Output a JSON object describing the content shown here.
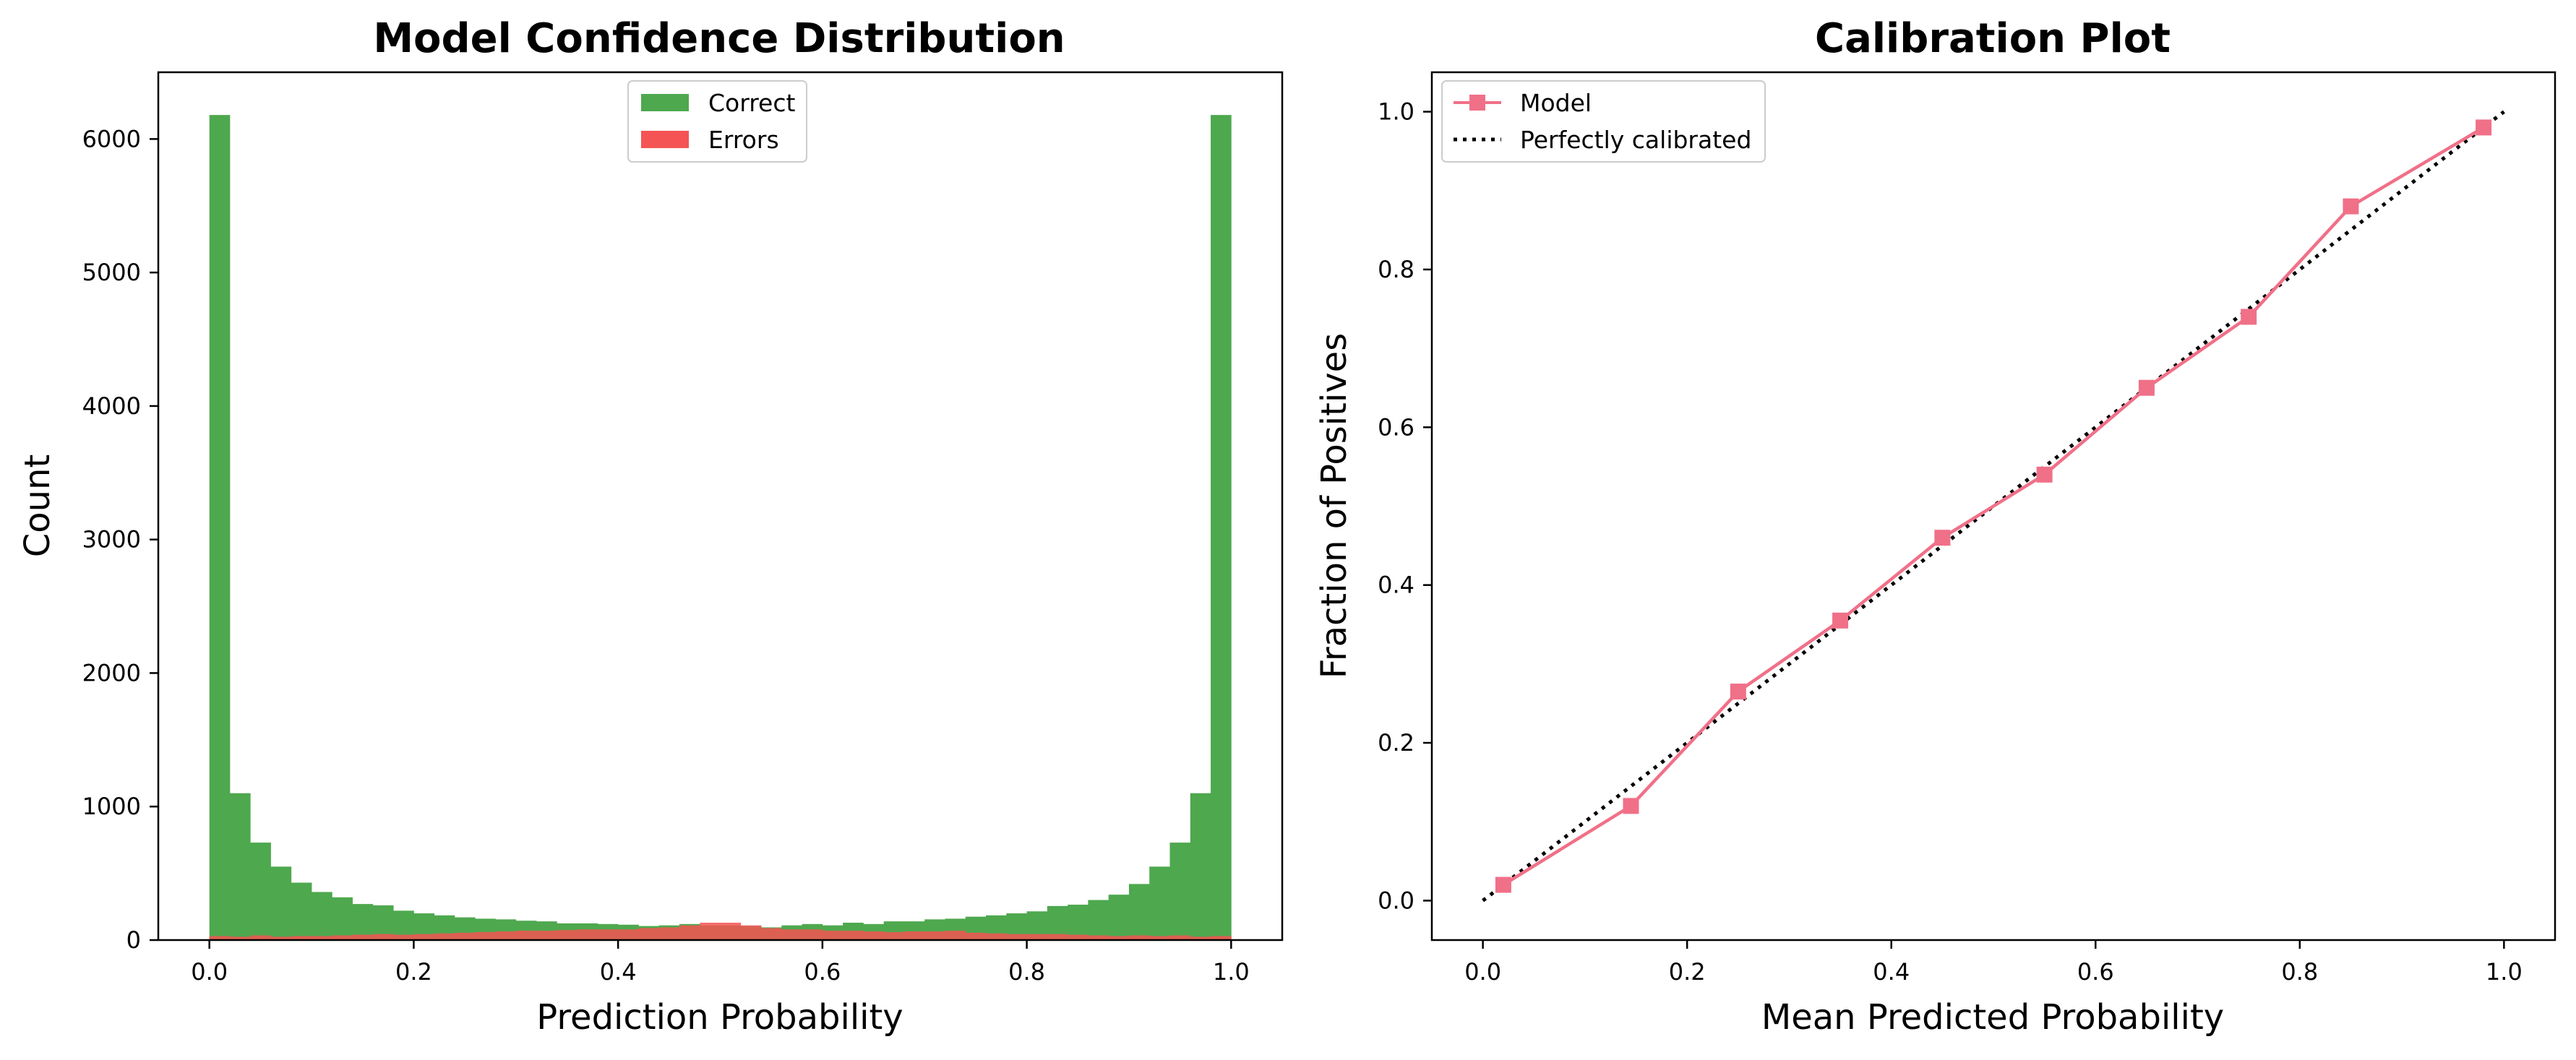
{
  "chart_data": [
    {
      "type": "bar",
      "title": "Model Confidence Distribution",
      "xlabel": "Prediction Probability",
      "ylabel": "Count",
      "xlim": [
        -0.05,
        1.05
      ],
      "ylim": [
        0,
        6500
      ],
      "xticks": [
        "0.0",
        "0.2",
        "0.4",
        "0.6",
        "0.8",
        "1.0"
      ],
      "yticks": [
        "0",
        "1000",
        "2000",
        "3000",
        "4000",
        "5000",
        "6000"
      ],
      "grid": false,
      "legend_position": "top-center",
      "bins": 50,
      "bin_range": [
        0,
        1
      ],
      "series": [
        {
          "name": "Correct",
          "color": "#4ea84e",
          "values": [
            6180,
            1100,
            730,
            550,
            430,
            360,
            320,
            270,
            260,
            220,
            200,
            185,
            170,
            160,
            155,
            145,
            140,
            125,
            125,
            120,
            115,
            105,
            110,
            120,
            110,
            110,
            105,
            95,
            110,
            120,
            110,
            130,
            120,
            140,
            140,
            155,
            160,
            175,
            185,
            200,
            215,
            255,
            265,
            300,
            340,
            420,
            550,
            730,
            1100,
            6180
          ]
        },
        {
          "name": "Errors",
          "color": "#f45454",
          "values": [
            30,
            25,
            35,
            25,
            30,
            30,
            35,
            40,
            45,
            40,
            45,
            50,
            55,
            60,
            65,
            70,
            70,
            75,
            80,
            80,
            80,
            90,
            95,
            110,
            130,
            130,
            110,
            90,
            80,
            80,
            70,
            70,
            65,
            60,
            65,
            65,
            70,
            55,
            50,
            45,
            45,
            45,
            40,
            35,
            30,
            35,
            30,
            35,
            25,
            30
          ]
        }
      ]
    },
    {
      "type": "line",
      "title": "Calibration Plot",
      "xlabel": "Mean Predicted Probability",
      "ylabel": "Fraction of Positives",
      "xlim": [
        -0.05,
        1.05
      ],
      "ylim": [
        -0.05,
        1.05
      ],
      "xticks": [
        "0.0",
        "0.2",
        "0.4",
        "0.6",
        "0.8",
        "1.0"
      ],
      "yticks": [
        "0.0",
        "0.2",
        "0.4",
        "0.6",
        "0.8",
        "1.0"
      ],
      "grid": false,
      "legend_position": "top-left",
      "series": [
        {
          "name": "Model",
          "color": "#f07088",
          "marker": "square",
          "x": [
            0.02,
            0.145,
            0.25,
            0.35,
            0.45,
            0.55,
            0.65,
            0.75,
            0.85,
            0.98
          ],
          "y": [
            0.02,
            0.12,
            0.265,
            0.355,
            0.46,
            0.54,
            0.65,
            0.74,
            0.88,
            0.98
          ]
        },
        {
          "name": "Perfectly calibrated",
          "color": "#000000",
          "style": "dotted",
          "x": [
            0,
            1
          ],
          "y": [
            0,
            1
          ]
        }
      ]
    }
  ]
}
